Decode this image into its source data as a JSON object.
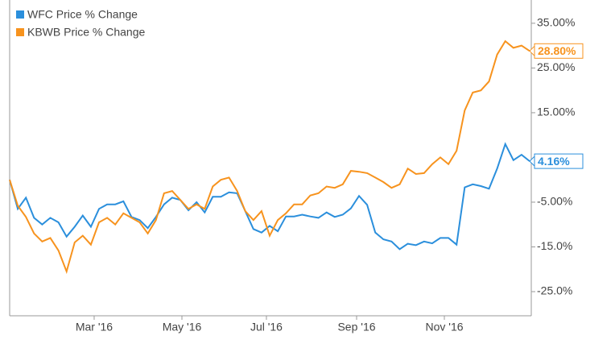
{
  "chart_data": {
    "type": "line",
    "series": [
      {
        "name": "WFC Price % Change",
        "color": "#2b8fdc",
        "last_label": "4.16%",
        "values": [
          0,
          -6.5,
          -4,
          -8.5,
          -10,
          -8.5,
          -9.5,
          -12.7,
          -10.5,
          -8,
          -10.5,
          -6.5,
          -5.5,
          -5.5,
          -4.8,
          -8.3,
          -9,
          -10.8,
          -8.3,
          -5.5,
          -4,
          -4.5,
          -6.8,
          -5,
          -7.3,
          -3.8,
          -3.8,
          -2.8,
          -3,
          -7,
          -11,
          -11.8,
          -10.3,
          -11.5,
          -8.2,
          -8.2,
          -7.8,
          -8.2,
          -8.5,
          -7.3,
          -8.3,
          -7.8,
          -6.4,
          -3.6,
          -5.6,
          -11.8,
          -13.3,
          -13.8,
          -15.5,
          -14.3,
          -14.6,
          -13.8,
          -14.2,
          -13,
          -13,
          -14.5,
          -1.7,
          -1,
          -1.4,
          -2,
          2.5,
          8,
          4.4,
          5.6,
          4.16
        ]
      },
      {
        "name": "KBWB Price % Change",
        "color": "#f7931e",
        "last_label": "28.80%",
        "values": [
          0,
          -5.8,
          -8.3,
          -12,
          -13.8,
          -13,
          -15.8,
          -20.5,
          -14,
          -12.5,
          -14.5,
          -9.5,
          -8.5,
          -10,
          -7.5,
          -8.5,
          -9.5,
          -12,
          -9,
          -3,
          -2.5,
          -4.5,
          -6.5,
          -5.5,
          -6.5,
          -1.5,
          0,
          0.5,
          -2.5,
          -7,
          -9,
          -7,
          -12.5,
          -9,
          -7.5,
          -5.5,
          -5.5,
          -3.5,
          -3,
          -1.5,
          -1.8,
          -1,
          2,
          1.8,
          1.5,
          0.5,
          -0.5,
          -1.8,
          -1,
          2.5,
          1.3,
          1.5,
          3.5,
          5,
          3.5,
          6.5,
          15.5,
          19.5,
          20,
          22,
          28,
          31,
          29.5,
          30,
          28.8
        ]
      }
    ],
    "xlim": [
      0,
      64
    ],
    "xticks": [
      {
        "value": 10.4,
        "label": "Mar '16"
      },
      {
        "value": 21.2,
        "label": "May '16"
      },
      {
        "value": 31.6,
        "label": "Jul '16"
      },
      {
        "value": 42.7,
        "label": "Sep '16"
      },
      {
        "value": 53.5,
        "label": "Nov '16"
      }
    ],
    "ylim": [
      -30.4,
      40.2
    ],
    "yticks": [
      {
        "value": 35,
        "label": "35.00%"
      },
      {
        "value": 25,
        "label": "25.00%"
      },
      {
        "value": 15,
        "label": "15.00%"
      },
      {
        "value": -5,
        "label": "-5.00%"
      },
      {
        "value": -15,
        "label": "-15.0%"
      },
      {
        "value": -25,
        "label": "-25.0%"
      }
    ]
  }
}
